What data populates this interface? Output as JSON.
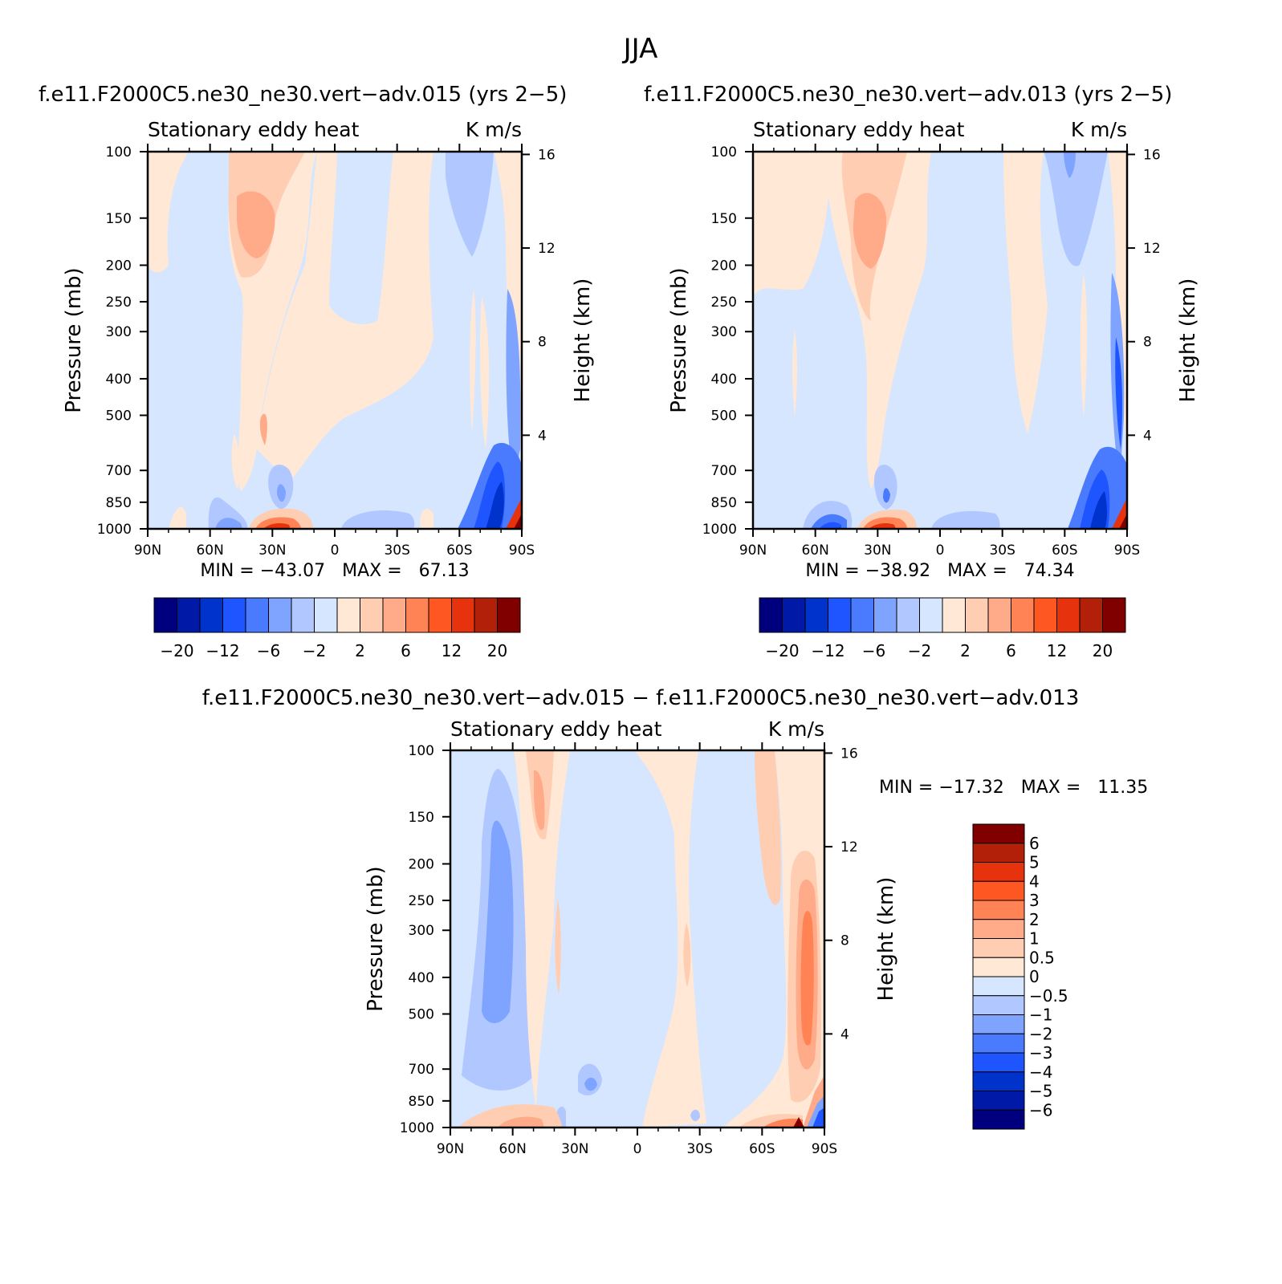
{
  "figure_title": "JJA",
  "colors": {
    "top_levels": [
      "#00007f",
      "#0019a6",
      "#0033cc",
      "#1f55ff",
      "#4a7bff",
      "#7ea4ff",
      "#b0c8ff",
      "#d6e6ff",
      "#ffe8d6",
      "#ffcdb2",
      "#ffaa88",
      "#ff8355",
      "#ff5722",
      "#e6330d",
      "#b3200a",
      "#800000"
    ],
    "diff_levels": [
      "#00007f",
      "#0019a6",
      "#0033cc",
      "#1f55ff",
      "#4a7bff",
      "#7ea4ff",
      "#b0c8ff",
      "#d6e6ff",
      "#ffe8d6",
      "#ffcdb2",
      "#ffaa88",
      "#ff8355",
      "#ff5722",
      "#e6330d",
      "#b3200a",
      "#800000"
    ]
  },
  "panels": [
    {
      "id": "left",
      "title": "f.e11.F2000C5.ne30_ne30.vert−adv.015 (yrs 2−5)",
      "left_string": "Stationary eddy heat",
      "right_string": "K m/s",
      "ylabel": "Pressure (mb)",
      "ylabel_right": "Height (km)",
      "min_max": "MIN = −43.07   MAX =   67.13"
    },
    {
      "id": "right",
      "title": "f.e11.F2000C5.ne30_ne30.vert−adv.013 (yrs 2−5)",
      "left_string": "Stationary eddy heat",
      "right_string": "K m/s",
      "ylabel": "Pressure (mb)",
      "ylabel_right": "Height (km)",
      "min_max": "MIN = −38.92   MAX =   74.34"
    },
    {
      "id": "diff",
      "title": "f.e11.F2000C5.ne30_ne30.vert−adv.015 − f.e11.F2000C5.ne30_ne30.vert−adv.013",
      "left_string": "Stationary eddy heat",
      "right_string": "K m/s",
      "ylabel": "Pressure (mb)",
      "ylabel_right": "Height (km)",
      "min_max": "MIN = −17.32   MAX =   11.35"
    }
  ],
  "chart_data": [
    {
      "type": "heatmap",
      "title": "f.e11.F2000C5.ne30_ne30.vert−adv.015 (yrs 2−5)",
      "variable": "Stationary eddy heat",
      "units": "K m/s",
      "xlabel": "",
      "ylabel": "Pressure (mb)",
      "ylabel_right": "Height (km)",
      "x_ticks": [
        "90N",
        "60N",
        "30N",
        "0",
        "30S",
        "60S",
        "90S"
      ],
      "y_ticks": [
        100,
        150,
        200,
        250,
        300,
        400,
        500,
        700,
        850,
        1000
      ],
      "y_ticks_right": [
        16,
        12,
        8,
        4
      ],
      "xlim": [
        90,
        -90
      ],
      "ylim": [
        1000,
        100
      ],
      "min": -43.07,
      "max": 67.13,
      "colorbar_labels": [
        "−20",
        "−12",
        "−6",
        "−2",
        "2",
        "6",
        "12",
        "20"
      ],
      "features": [
        {
          "lat": -82,
          "p": 850,
          "value": -20
        },
        {
          "lat": -88,
          "p": 950,
          "value": 60
        },
        {
          "lat": 30,
          "p": 980,
          "value": 15
        },
        {
          "lat": 32,
          "p": 150,
          "value": 4
        },
        {
          "lat": 40,
          "p": 950,
          "value": -6
        },
        {
          "lat": 25,
          "p": 820,
          "value": -6
        },
        {
          "lat": -58,
          "p": 140,
          "value": -2
        }
      ]
    },
    {
      "type": "heatmap",
      "title": "f.e11.F2000C5.ne30_ne30.vert−adv.013 (yrs 2−5)",
      "variable": "Stationary eddy heat",
      "units": "K m/s",
      "xlabel": "",
      "ylabel": "Pressure (mb)",
      "ylabel_right": "Height (km)",
      "x_ticks": [
        "90N",
        "60N",
        "30N",
        "0",
        "30S",
        "60S",
        "90S"
      ],
      "y_ticks": [
        100,
        150,
        200,
        250,
        300,
        400,
        500,
        700,
        850,
        1000
      ],
      "y_ticks_right": [
        16,
        12,
        8,
        4
      ],
      "xlim": [
        90,
        -90
      ],
      "ylim": [
        1000,
        100
      ],
      "min": -38.92,
      "max": 74.34,
      "colorbar_labels": [
        "−20",
        "−12",
        "−6",
        "−2",
        "2",
        "6",
        "12",
        "20"
      ],
      "features": [
        {
          "lat": -82,
          "p": 850,
          "value": -20
        },
        {
          "lat": -88,
          "p": 950,
          "value": 70
        },
        {
          "lat": 30,
          "p": 980,
          "value": 12
        },
        {
          "lat": 33,
          "p": 150,
          "value": 4
        },
        {
          "lat": 55,
          "p": 950,
          "value": -10
        },
        {
          "lat": 27,
          "p": 830,
          "value": -6
        },
        {
          "lat": -60,
          "p": 130,
          "value": -2
        }
      ]
    },
    {
      "type": "heatmap",
      "title": "f.e11.F2000C5.ne30_ne30.vert−adv.015 − f.e11.F2000C5.ne30_ne30.vert−adv.013",
      "variable": "Stationary eddy heat",
      "units": "K m/s",
      "xlabel": "",
      "ylabel": "Pressure (mb)",
      "ylabel_right": "Height (km)",
      "x_ticks": [
        "90N",
        "60N",
        "30N",
        "0",
        "30S",
        "60S",
        "90S"
      ],
      "y_ticks": [
        100,
        150,
        200,
        250,
        300,
        400,
        500,
        700,
        850,
        1000
      ],
      "y_ticks_right": [
        16,
        12,
        8,
        4
      ],
      "xlim": [
        90,
        -90
      ],
      "ylim": [
        1000,
        100
      ],
      "min": -17.32,
      "max": 11.35,
      "colorbar_labels": [
        "6",
        "5",
        "4",
        "3",
        "2",
        "1",
        "0.5",
        "0",
        "−0.5",
        "−1",
        "−2",
        "−3",
        "−4",
        "−5",
        "−6"
      ],
      "features": [
        {
          "lat": 66,
          "p": 300,
          "value": -2
        },
        {
          "lat": 50,
          "p": 150,
          "value": 1
        },
        {
          "lat": 30,
          "p": 820,
          "value": -2
        },
        {
          "lat": -82,
          "p": 400,
          "value": 3
        },
        {
          "lat": -88,
          "p": 960,
          "value": -6
        },
        {
          "lat": -60,
          "p": 150,
          "value": 0.5
        }
      ]
    }
  ]
}
